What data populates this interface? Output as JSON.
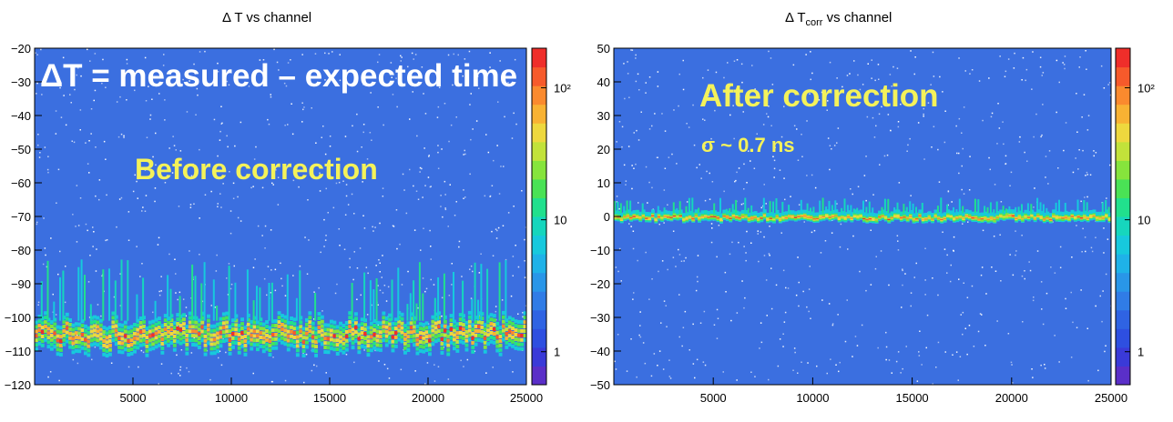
{
  "chart_data": [
    {
      "type": "heatmap",
      "title": "Δ T vs channel",
      "xlabel": "",
      "ylabel": "",
      "xlim": [
        0,
        25000
      ],
      "ylim": [
        -120,
        -20
      ],
      "x_ticks": [
        5000,
        10000,
        15000,
        20000,
        25000
      ],
      "y_ticks": [
        -20,
        -30,
        -40,
        -50,
        -60,
        -70,
        -80,
        -90,
        -100,
        -110,
        -120
      ],
      "colorbar": {
        "scale": "log",
        "tick_labels": [
          "10²",
          "10",
          "1"
        ],
        "tick_values": [
          100,
          10,
          1
        ]
      },
      "annotations": [
        "ΔT = measured – expected time",
        "Before correction"
      ],
      "band": {
        "center_y": -105,
        "width": 8,
        "description": "dense band of counts"
      }
    },
    {
      "type": "heatmap",
      "title": "Δ T",
      "title_sub": "corr",
      "title_rest": " vs channel",
      "xlabel": "",
      "ylabel": "",
      "xlim": [
        0,
        25000
      ],
      "ylim": [
        -50,
        50
      ],
      "x_ticks": [
        5000,
        10000,
        15000,
        20000,
        25000
      ],
      "y_ticks": [
        50,
        40,
        30,
        20,
        10,
        0,
        -10,
        -20,
        -30,
        -40,
        -50
      ],
      "colorbar": {
        "scale": "log",
        "tick_labels": [
          "10²",
          "10",
          "1"
        ],
        "tick_values": [
          100,
          10,
          1
        ]
      },
      "annotations": [
        "After correction",
        "σ ~ 0.7 ns"
      ],
      "band": {
        "center_y": 0,
        "width": 2
      }
    }
  ],
  "colors": {
    "background": "#3b6fe0",
    "speck": "#ffffff",
    "annotation_white": "#ffffff",
    "annotation_yellow": "#f4f25a"
  }
}
